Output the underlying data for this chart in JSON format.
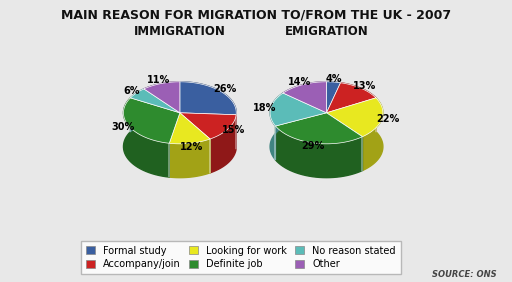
{
  "title": "MAIN REASON FOR MIGRATION TO/FROM THE UK - 2007",
  "immigration_title": "IMMIGRATION",
  "emigration_title": "EMIGRATION",
  "source": "SOURCE: ONS",
  "immigration": {
    "values": [
      26,
      15,
      12,
      30,
      6,
      11
    ],
    "colors": [
      "#3a5fa0",
      "#cc2222",
      "#e8e820",
      "#2e8b2e",
      "#5bbcb8",
      "#9b5fb5"
    ],
    "startangle": 90,
    "pct_labels": [
      "26%",
      "15%",
      "12%",
      "30%",
      "6%",
      "11%"
    ]
  },
  "emigration": {
    "values": [
      4,
      13,
      22,
      29,
      18,
      14
    ],
    "colors": [
      "#3a5fa0",
      "#cc2222",
      "#e8e820",
      "#2e8b2e",
      "#5bbcb8",
      "#9b5fb5"
    ],
    "startangle": 90,
    "pct_labels": [
      "4%",
      "13%",
      "22%",
      "29%",
      "18%",
      "14%"
    ]
  },
  "legend_labels": [
    "Formal study",
    "Accompany/join",
    "Looking for work",
    "Definite job",
    "No reason stated",
    "Other"
  ],
  "legend_colors": [
    "#3a5fa0",
    "#cc2222",
    "#e8e820",
    "#2e8b2e",
    "#5bbcb8",
    "#9b5fb5"
  ],
  "background_color": "#e8e8e8",
  "title_fontsize": 9,
  "subtitle_fontsize": 8.5,
  "label_fontsize": 7,
  "depth": 0.12,
  "yscale": 0.55
}
